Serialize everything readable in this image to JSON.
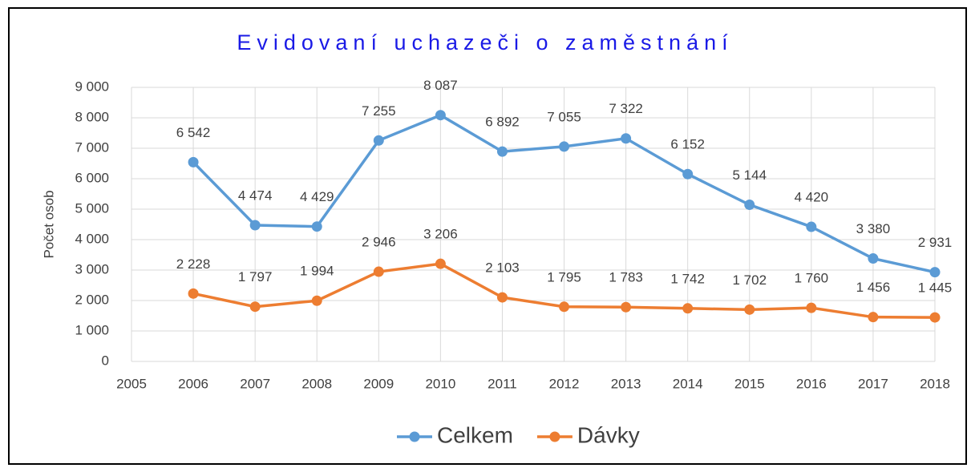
{
  "chart_data": {
    "type": "line",
    "title": "Evidovaní uchazeči o zaměstnání",
    "y_label": "Počet osob",
    "x": [
      2006,
      2007,
      2008,
      2009,
      2010,
      2011,
      2012,
      2013,
      2014,
      2015,
      2016,
      2017,
      2018
    ],
    "series": [
      {
        "name": "Celkem",
        "color": "#5b9bd5",
        "values": [
          6542,
          4474,
          4429,
          7255,
          8087,
          6892,
          7055,
          7322,
          6152,
          5144,
          4420,
          3380,
          2931
        ],
        "value_labels": [
          "6 542",
          "4 474",
          "4 429",
          "7 255",
          "8 087",
          "6 892",
          "7 055",
          "7 322",
          "6 152",
          "5 144",
          "4 420",
          "3 380",
          "2 931"
        ]
      },
      {
        "name": "Dávky",
        "color": "#ed7d31",
        "values": [
          2228,
          1797,
          1994,
          2946,
          3206,
          2103,
          1795,
          1783,
          1742,
          1702,
          1760,
          1456,
          1445
        ],
        "value_labels": [
          "2 228",
          "1 797",
          "1 994",
          "2 946",
          "3 206",
          "2 103",
          "1 795",
          "1 783",
          "1 742",
          "1 702",
          "1 760",
          "1 456",
          "1 445"
        ]
      }
    ],
    "xlim": [
      2005,
      2018
    ],
    "xticks": [
      2005,
      2006,
      2007,
      2008,
      2009,
      2010,
      2011,
      2012,
      2013,
      2014,
      2015,
      2016,
      2017,
      2018
    ],
    "ylim": [
      0,
      9000
    ],
    "yticks": [
      0,
      {
        "value": 1000,
        "label": "1 000"
      },
      {
        "value": 2000,
        "label": "2 000"
      },
      {
        "value": 3000,
        "label": "3 000"
      },
      {
        "value": 4000,
        "label": "4 000"
      },
      {
        "value": 5000,
        "label": "5 000"
      },
      {
        "value": 6000,
        "label": "6 000"
      },
      {
        "value": 7000,
        "label": "7 000"
      },
      {
        "value": 8000,
        "label": "8 000"
      },
      {
        "value": 9000,
        "label": "9 000"
      }
    ],
    "grid": true,
    "legend": "bottom"
  }
}
